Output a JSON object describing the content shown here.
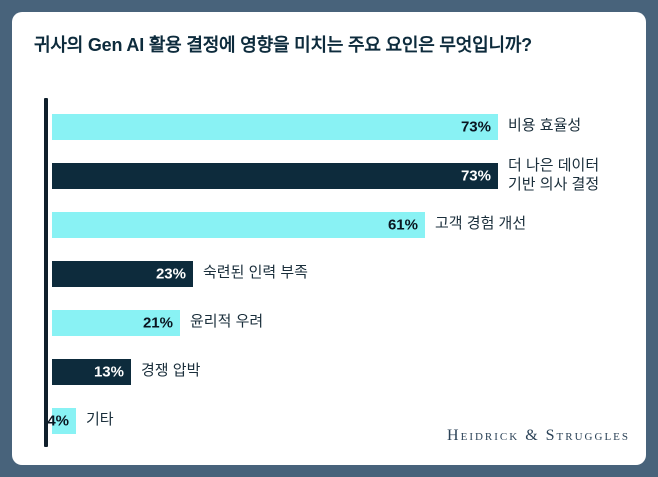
{
  "colors": {
    "background": "#48637B",
    "card": "#FFFFFF",
    "bar_cyan": "#89F2F4",
    "bar_navy": "#0D2B3C",
    "pct_on_cyan": "#0A1520",
    "pct_on_navy": "#FFFFFF",
    "title_text": "#0D2B3C",
    "axis": "#10202C",
    "logo_text": "#2B4257"
  },
  "branding": {
    "logo_text": "Heidrick & Struggles"
  },
  "chart_data": {
    "type": "bar",
    "orientation": "horizontal",
    "title": "귀사의 Gen AI 활용 결정에 영향을 미치는 주요 요인은 무엇입니까?",
    "categories": [
      "비용 효율성",
      "더 나은 데이터 기반 의사 결정",
      "고객 경험 개선",
      "숙련된 인력 부족",
      "윤리적 우려",
      "경쟁 압박",
      "기타"
    ],
    "values": [
      73,
      73,
      61,
      23,
      21,
      13,
      4
    ],
    "value_labels": [
      "73%",
      "73%",
      "61%",
      "23%",
      "21%",
      "13%",
      "4%"
    ],
    "label_lines": [
      [
        "비용 효율성"
      ],
      [
        "더 나은 데이터",
        "기반 의사 결정"
      ],
      [
        "고객 경험 개선"
      ],
      [
        "숙련된 인력 부족"
      ],
      [
        "윤리적 우려"
      ],
      [
        "경쟁 압박"
      ],
      [
        "기타"
      ]
    ],
    "bar_color_sequence": [
      "cyan",
      "navy",
      "cyan",
      "navy",
      "cyan",
      "navy",
      "cyan"
    ],
    "xlim": [
      0,
      80
    ],
    "grid": false,
    "legend": false
  }
}
